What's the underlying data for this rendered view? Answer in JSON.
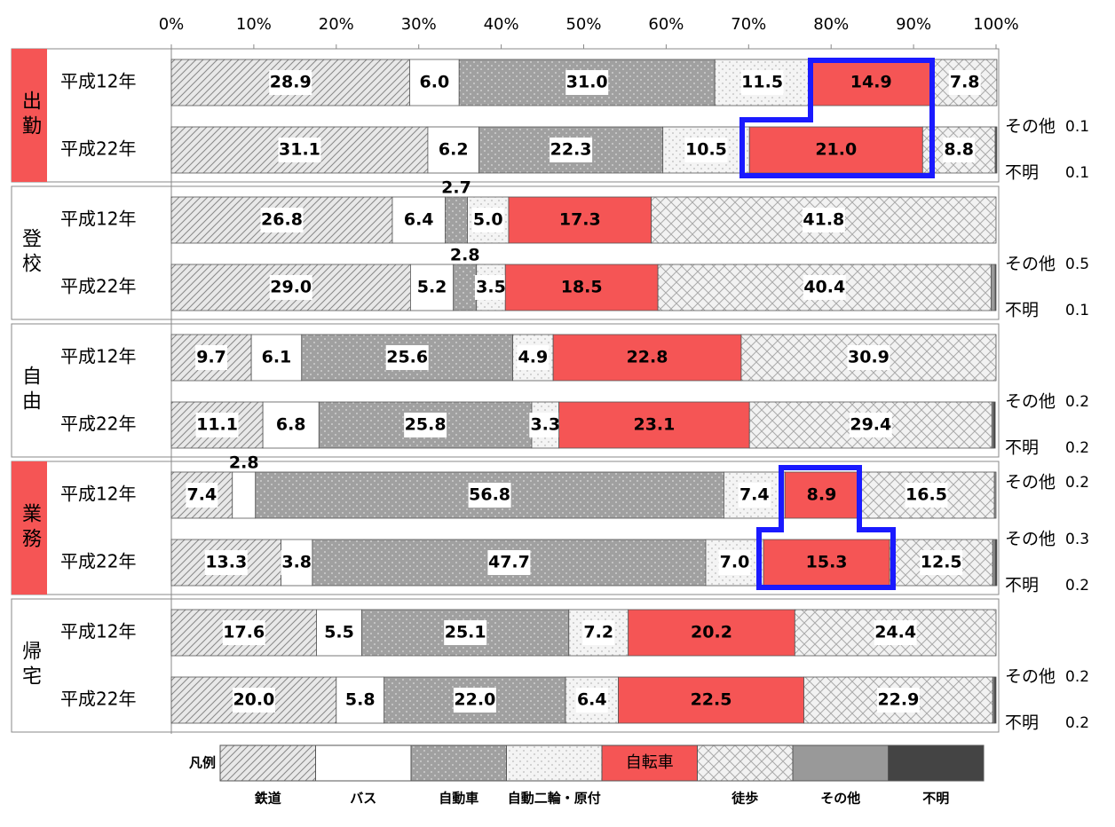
{
  "chart_data": {
    "type": "bar",
    "orientation": "horizontal",
    "stacked": true,
    "xlim": [
      0,
      100
    ],
    "xticks": [
      {
        "value": 0,
        "label": "0%"
      },
      {
        "value": 10,
        "label": "10%"
      },
      {
        "value": 20,
        "label": "20%"
      },
      {
        "value": 30,
        "label": "30%"
      },
      {
        "value": 40,
        "label": "40%"
      },
      {
        "value": 50,
        "label": "50%"
      },
      {
        "value": 60,
        "label": "60%"
      },
      {
        "value": 70,
        "label": "70%"
      },
      {
        "value": 80,
        "label": "80%"
      },
      {
        "value": 90,
        "label": "90%"
      },
      {
        "value": 100,
        "label": "100%"
      }
    ],
    "groups": [
      {
        "name": "出勤",
        "highlight": true
      },
      {
        "name": "登校",
        "highlight": false
      },
      {
        "name": "自由",
        "highlight": false
      },
      {
        "name": "業務",
        "highlight": true
      },
      {
        "name": "帰宅",
        "highlight": false
      }
    ],
    "categories": [
      "平成12年",
      "平成22年",
      "平成12年",
      "平成22年",
      "平成12年",
      "平成22年",
      "平成12年",
      "平成22年",
      "平成12年",
      "平成22年"
    ],
    "legend_title": "凡例",
    "series": [
      {
        "name": "鉄道",
        "color": "#e8e8e8",
        "pattern": "hatch",
        "values": [
          28.9,
          31.1,
          26.8,
          29.0,
          9.7,
          11.1,
          7.4,
          13.3,
          17.6,
          20.0
        ],
        "value_labels": [
          "28.9",
          "31.1",
          "26.8",
          "29.0",
          "9.7",
          "11.1",
          "7.4",
          "13.3",
          "17.6",
          "20.0"
        ]
      },
      {
        "name": "バス",
        "color": "#ffffff",
        "pattern": "solid",
        "values": [
          6.0,
          6.2,
          6.4,
          5.2,
          6.1,
          6.8,
          2.8,
          3.8,
          5.5,
          5.8
        ],
        "value_labels": [
          "6.0",
          "6.2",
          "6.4",
          "5.2",
          "6.1",
          "6.8",
          "2.8",
          "3.8",
          "5.5",
          "5.8"
        ]
      },
      {
        "name": "自動車",
        "color": "#a0a0a0",
        "pattern": "dots",
        "values": [
          31.0,
          22.3,
          2.7,
          2.8,
          25.6,
          25.8,
          56.8,
          47.7,
          25.1,
          22.0
        ],
        "value_labels": [
          "31.0",
          "22.3",
          "2.7",
          "2.8",
          "25.6",
          "25.8",
          "56.8",
          "47.7",
          "25.1",
          "22.0"
        ]
      },
      {
        "name": "自動二輪・原付",
        "color": "#f4f4f4",
        "pattern": "dots",
        "values": [
          11.5,
          10.5,
          5.0,
          3.5,
          4.9,
          3.3,
          7.4,
          7.0,
          7.2,
          6.4
        ],
        "value_labels": [
          "11.5",
          "10.5",
          "5.0",
          "3.5",
          "4.9",
          "3.3",
          "7.4",
          "7.0",
          "7.2",
          "6.4"
        ]
      },
      {
        "name": "自転車",
        "color": "#f55555",
        "pattern": "solid",
        "values": [
          14.9,
          21.0,
          17.3,
          18.5,
          22.8,
          23.1,
          8.9,
          15.3,
          20.2,
          22.5
        ],
        "value_labels": [
          "14.9",
          "21.0",
          "17.3",
          "18.5",
          "22.8",
          "23.1",
          "8.9",
          "15.3",
          "20.2",
          "22.5"
        ]
      },
      {
        "name": "徒歩",
        "color": "#f2f2f2",
        "pattern": "cross",
        "values": [
          7.8,
          8.8,
          41.8,
          40.4,
          30.9,
          29.4,
          16.5,
          12.5,
          24.4,
          22.9
        ],
        "value_labels": [
          "7.8",
          "8.8",
          "41.8",
          "40.4",
          "30.9",
          "29.4",
          "16.5",
          "12.5",
          "24.4",
          "22.9"
        ]
      },
      {
        "name": "その他",
        "color": "#999999",
        "pattern": "solid",
        "values": [
          null,
          0.1,
          null,
          0.5,
          null,
          0.2,
          0.2,
          0.3,
          null,
          0.2
        ]
      },
      {
        "name": "不明",
        "color": "#444444",
        "pattern": "solid",
        "values": [
          null,
          0.1,
          null,
          0.1,
          null,
          0.2,
          null,
          0.2,
          null,
          0.2
        ]
      }
    ]
  }
}
